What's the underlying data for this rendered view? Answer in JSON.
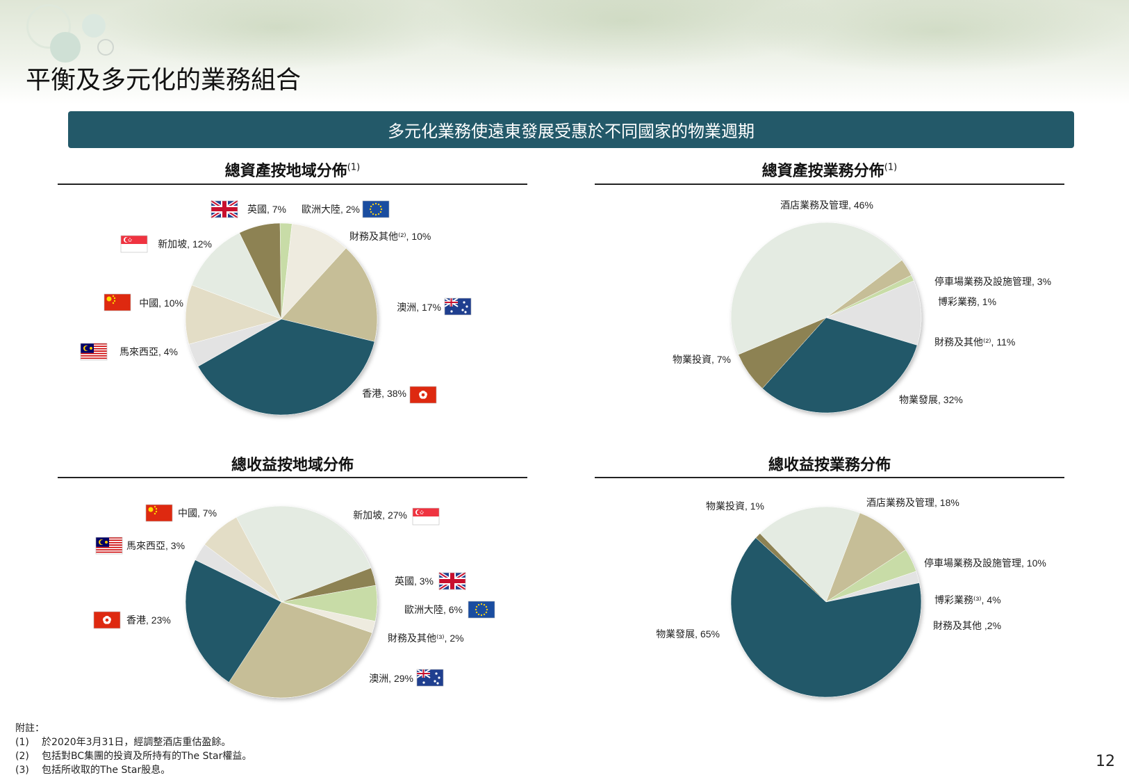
{
  "page": {
    "title": "平衡及多元化的業務組合",
    "banner": "多元化業務使遠東發展受惠於不同國家的物業週期",
    "page_number": "12"
  },
  "colors": {
    "teal": "#235969",
    "khaki": "#C6BE97",
    "cream": "#E3DDC6",
    "light_grey": "#E3E3E3",
    "pale_green": "#E4EBE2",
    "olive": "#8D8253",
    "light_green": "#C8DCA7",
    "ivory": "#EEEBDF",
    "banner_bg": "#235969"
  },
  "footnotes": {
    "heading": "附註：",
    "items": [
      {
        "num": "(1)",
        "text": "於2020年3月31日，經調整酒店重估盈餘。"
      },
      {
        "num": "(2)",
        "text": "包括對BC集團的投資及所持有的The Star權益。"
      },
      {
        "num": "(3)",
        "text": "包括所收取的The Star股息。"
      }
    ]
  },
  "chart_data": [
    {
      "type": "pie",
      "title": "總資產按地域分佈",
      "title_note": "(1)",
      "slices": [
        {
          "label": "英國, 7%",
          "value": 7,
          "flag": "uk-flag-icon",
          "color": "#8D8253"
        },
        {
          "label": "歐洲大陸, 2%",
          "value": 2,
          "flag": "eu-flag-icon",
          "color": "#C8DCA7"
        },
        {
          "label": "財務及其他⁽²⁾, 10%",
          "value": 10,
          "flag": null,
          "color": "#EEEBDF"
        },
        {
          "label": "澳洲, 17%",
          "value": 17,
          "flag": "australia-flag-icon",
          "color": "#C6BE97"
        },
        {
          "label": "香港, 38%",
          "value": 38,
          "flag": "hong-kong-flag-icon",
          "color": "#235969"
        },
        {
          "label": "馬來西亞, 4%",
          "value": 4,
          "flag": "malaysia-flag-icon",
          "color": "#E3E3E3"
        },
        {
          "label": "中國, 10%",
          "value": 10,
          "flag": "china-flag-icon",
          "color": "#E3DDC6"
        },
        {
          "label": "新加坡, 12%",
          "value": 12,
          "flag": "singapore-flag-icon",
          "color": "#E4EBE2"
        }
      ]
    },
    {
      "type": "pie",
      "title": "總資產按業務分佈",
      "title_note": "(1)",
      "slices": [
        {
          "label": "停車場業務及設施管理, 3%",
          "value": 3,
          "flag": null,
          "color": "#C6BE97"
        },
        {
          "label": "博彩業務, 1%",
          "value": 1,
          "flag": null,
          "color": "#C8DCA7"
        },
        {
          "label": "財務及其他⁽²⁾, 11%",
          "value": 11,
          "flag": null,
          "color": "#E3E3E3"
        },
        {
          "label": "物業發展, 32%",
          "value": 32,
          "flag": null,
          "color": "#235969"
        },
        {
          "label": "物業投資, 7%",
          "value": 7,
          "flag": null,
          "color": "#8D8253"
        },
        {
          "label": "酒店業務及管理, 46%",
          "value": 46,
          "flag": null,
          "color": "#E4EBE2"
        }
      ]
    },
    {
      "type": "pie",
      "title": "總收益按地域分佈",
      "title_note": "",
      "slices": [
        {
          "label": "新加坡, 27%",
          "value": 27,
          "flag": "singapore-flag-icon",
          "color": "#E4EBE2"
        },
        {
          "label": "英國, 3%",
          "value": 3,
          "flag": "uk-flag-icon",
          "color": "#8D8253"
        },
        {
          "label": "歐洲大陸, 6%",
          "value": 6,
          "flag": "eu-flag-icon",
          "color": "#C8DCA7"
        },
        {
          "label": "財務及其他⁽³⁾, 2%",
          "value": 2,
          "flag": null,
          "color": "#EEEBDF"
        },
        {
          "label": "澳洲, 29%",
          "value": 29,
          "flag": "australia-flag-icon",
          "color": "#C6BE97"
        },
        {
          "label": "香港, 23%",
          "value": 23,
          "flag": "hong-kong-flag-icon",
          "color": "#235969"
        },
        {
          "label": "馬來西亞, 3%",
          "value": 3,
          "flag": "malaysia-flag-icon",
          "color": "#E3E3E3"
        },
        {
          "label": "中國, 7%",
          "value": 7,
          "flag": "china-flag-icon",
          "color": "#E3DDC6"
        }
      ]
    },
    {
      "type": "pie",
      "title": "總收益按業務分佈",
      "title_note": "",
      "slices": [
        {
          "label": "酒店業務及管理, 18%",
          "value": 18,
          "flag": null,
          "color": "#E4EBE2"
        },
        {
          "label": "停車場業務及設施管理, 10%",
          "value": 10,
          "flag": null,
          "color": "#C6BE97"
        },
        {
          "label": "博彩業務⁽³⁾, 4%",
          "value": 4,
          "flag": null,
          "color": "#C8DCA7"
        },
        {
          "label": "財務及其他 ,2%",
          "value": 2,
          "flag": null,
          "color": "#E3E3E3"
        },
        {
          "label": "物業發展, 65%",
          "value": 65,
          "flag": null,
          "color": "#235969"
        },
        {
          "label": "物業投資, 1%",
          "value": 1,
          "flag": null,
          "color": "#8D8253"
        }
      ]
    }
  ]
}
